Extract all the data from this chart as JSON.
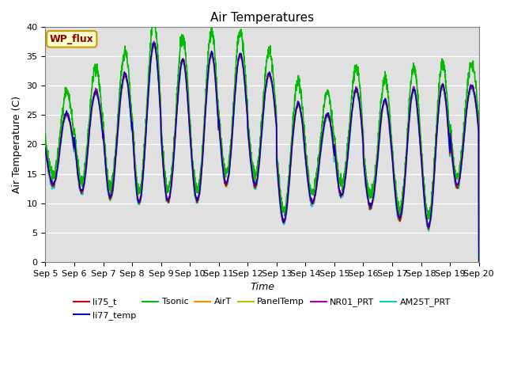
{
  "title": "Air Temperatures",
  "xlabel": "Time",
  "ylabel": "Air Temperature (C)",
  "ylim": [
    0,
    40
  ],
  "yticks": [
    0,
    5,
    10,
    15,
    20,
    25,
    30,
    35,
    40
  ],
  "background_color": "#e8e8e8",
  "plot_bg_color": "#e0e0e0",
  "series": {
    "li75_t": {
      "color": "#cc0000",
      "lw": 1.0,
      "zorder": 5
    },
    "li77_temp": {
      "color": "#0000cc",
      "lw": 1.0,
      "zorder": 6
    },
    "Tsonic": {
      "color": "#00bb00",
      "lw": 1.2,
      "zorder": 3
    },
    "AirT": {
      "color": "#ff8800",
      "lw": 1.0,
      "zorder": 4
    },
    "PanelTemp": {
      "color": "#bbbb00",
      "lw": 1.0,
      "zorder": 4
    },
    "NR01_PRT": {
      "color": "#aa00aa",
      "lw": 1.0,
      "zorder": 4
    },
    "AM25T_PRT": {
      "color": "#00cccc",
      "lw": 1.5,
      "zorder": 2
    }
  },
  "legend_label": "WP_flux",
  "legend_bbox_color": "#ffffcc",
  "legend_text_color": "#880000",
  "legend_border_color": "#cc9900",
  "n_days": 15,
  "points_per_day": 144,
  "xtick_labels": [
    "Sep 5",
    "Sep 6",
    "Sep 7",
    "Sep 8",
    "Sep 9",
    "Sep 10",
    "Sep 11",
    "Sep 12",
    "Sep 13",
    "Sep 14",
    "Sep 15",
    "Sep 16",
    "Sep 17",
    "Sep 18",
    "Sep 19",
    "Sep 20"
  ]
}
